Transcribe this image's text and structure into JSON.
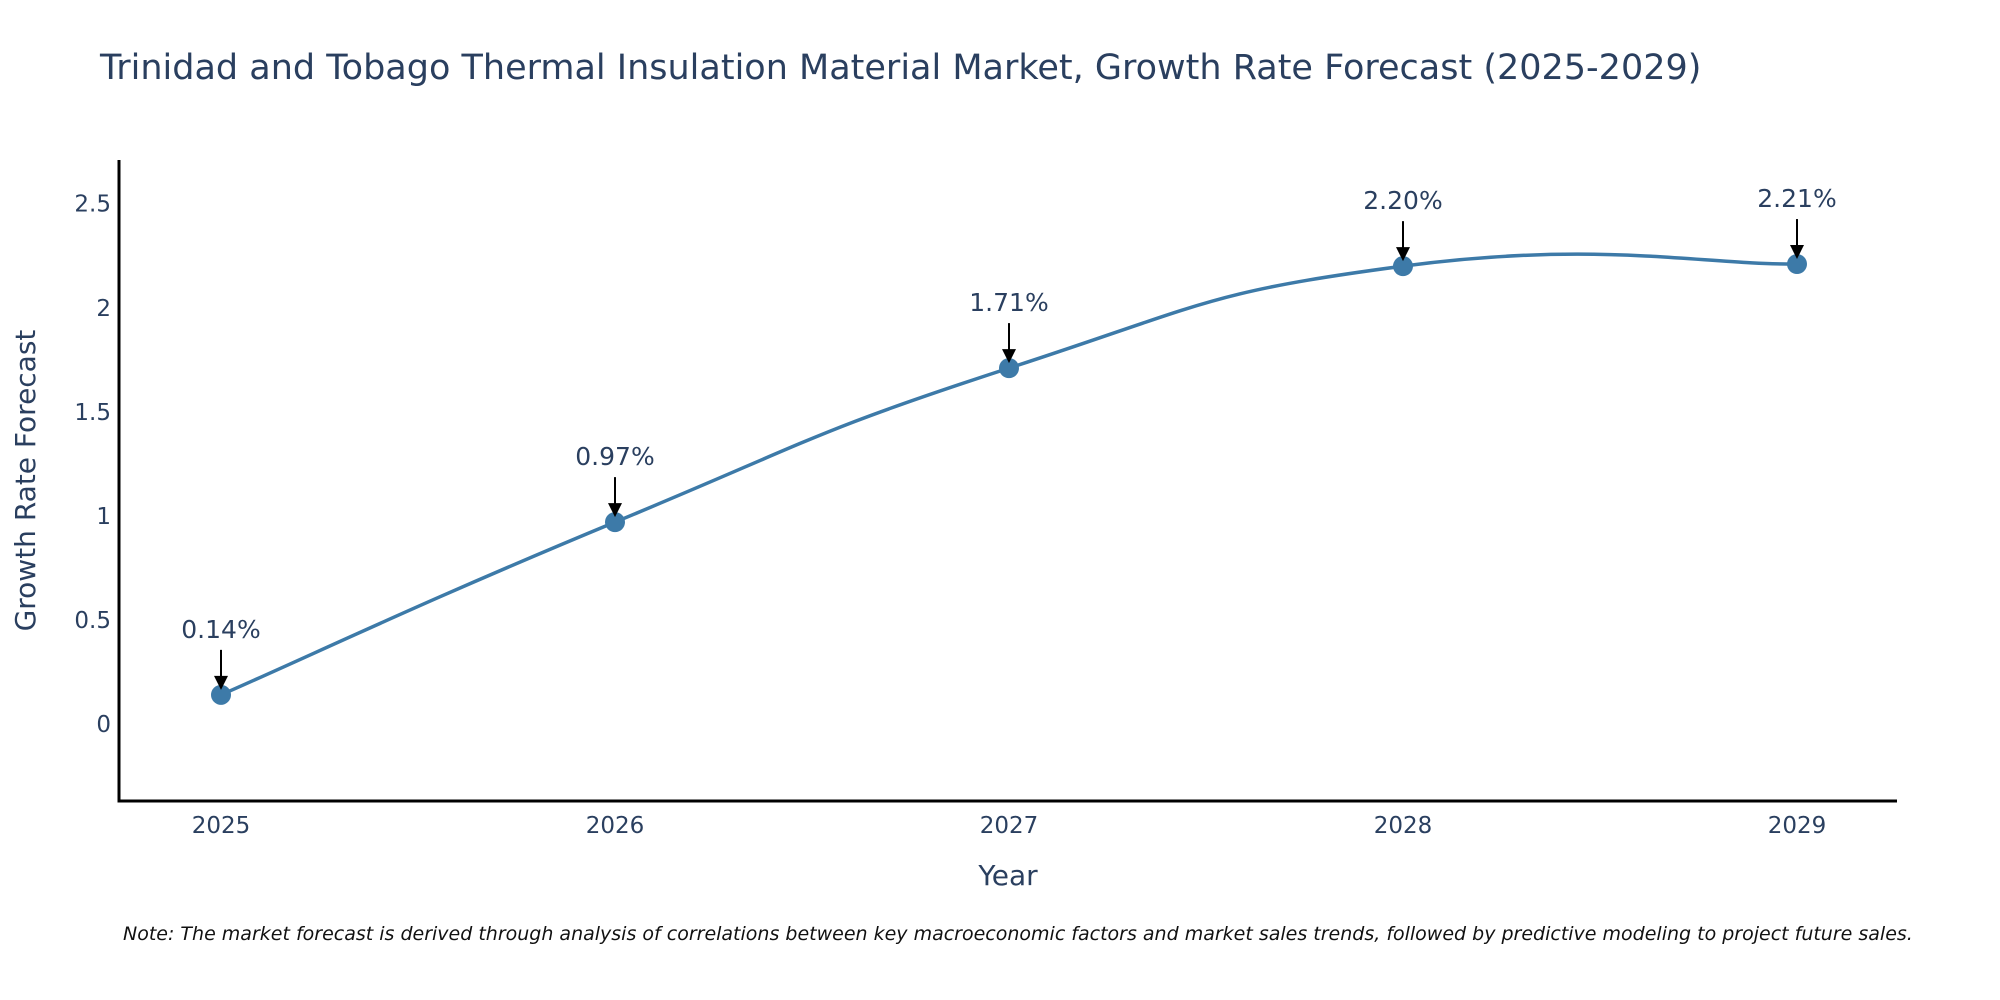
{
  "chart_data": {
    "type": "line",
    "title": "Trinidad and Tobago Thermal Insulation Material Market, Growth Rate Forecast (2025-2029)",
    "xlabel": "Year",
    "ylabel": "Growth Rate Forecast",
    "categories": [
      "2025",
      "2026",
      "2027",
      "2028",
      "2029"
    ],
    "series": [
      {
        "name": "Growth Rate Forecast",
        "values": [
          0.14,
          0.97,
          1.71,
          2.2,
          2.21
        ],
        "labels": [
          "0.14%",
          "0.97%",
          "1.71%",
          "2.20%",
          "2.21%"
        ],
        "color": "#3d7aa8"
      }
    ],
    "ylim": [
      -0.37,
      2.71
    ],
    "yticks": [
      0,
      0.5,
      1,
      1.5,
      2,
      2.5
    ],
    "ytick_labels": [
      "0",
      "0.5",
      "1",
      "1.5",
      "2",
      "2.5"
    ],
    "grid": false,
    "legend": "none",
    "line_shape": "spline",
    "note": "Note: The market forecast is derived through analysis of correlations between key macroeconomic factors and market sales trends, followed by predictive modeling to project future sales."
  }
}
